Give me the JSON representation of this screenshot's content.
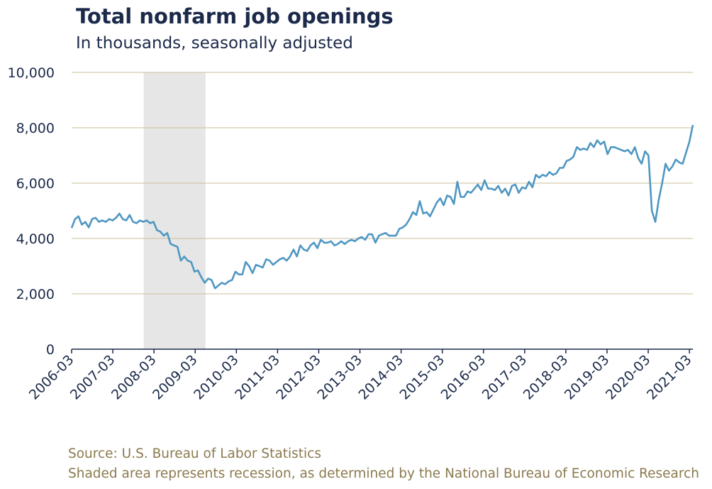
{
  "chart_data": {
    "type": "line",
    "title": "Total nonfarm job openings",
    "subtitle": "In thousands, seasonally adjusted",
    "xlabel": "",
    "ylabel": "",
    "ylim": [
      0,
      10000
    ],
    "yticks": [
      0,
      2000,
      4000,
      6000,
      8000,
      10000
    ],
    "ytick_labels": [
      "0",
      "2,000",
      "4,000",
      "6,000",
      "8,000",
      "10,000"
    ],
    "xtick_labels": [
      "2006-03",
      "2007-03",
      "2008-03",
      "2009-03",
      "2010-03",
      "2011-03",
      "2012-03",
      "2013-03",
      "2014-03",
      "2015-03",
      "2016-03",
      "2017-03",
      "2018-03",
      "2019-03",
      "2020-03",
      "2021-03"
    ],
    "x_start": "2006-03",
    "x_end": "2021-04",
    "grid": "horizontal",
    "recession_shading": {
      "start": "2007-12",
      "end": "2009-06"
    },
    "colors": {
      "line": "#4f97c2",
      "grid": "#c9bd9a",
      "shade": "#e6e6e6",
      "title": "#1c2a4a",
      "note": "#8b7a4e"
    },
    "series": [
      {
        "values": [
          4380,
          4700,
          4800,
          4500,
          4600,
          4400,
          4700,
          4750,
          4600,
          4650,
          4600,
          4700,
          4650,
          4750,
          4900,
          4700,
          4650,
          4850,
          4600,
          4550,
          4650,
          4600,
          4650,
          4550,
          4600,
          4300,
          4250,
          4100,
          4200,
          3800,
          3750,
          3700,
          3200,
          3350,
          3200,
          3150,
          2800,
          2850,
          2600,
          2400,
          2550,
          2500,
          2200,
          2300,
          2400,
          2350,
          2450,
          2500,
          2800,
          2700,
          2700,
          3150,
          3000,
          2750,
          3050,
          3000,
          2950,
          3250,
          3200,
          3050,
          3150,
          3250,
          3300,
          3200,
          3350,
          3600,
          3350,
          3750,
          3600,
          3550,
          3750,
          3850,
          3650,
          3950,
          3850,
          3850,
          3900,
          3750,
          3800,
          3900,
          3800,
          3900,
          3950,
          3900,
          4000,
          4050,
          3950,
          4150,
          4150,
          3850,
          4100,
          4150,
          4200,
          4100,
          4100,
          4100,
          4350,
          4400,
          4500,
          4700,
          4950,
          4850,
          5350,
          4900,
          4950,
          4800,
          5050,
          5300,
          5450,
          5200,
          5550,
          5500,
          5250,
          6050,
          5500,
          5500,
          5700,
          5650,
          5800,
          5950,
          5750,
          6100,
          5800,
          5800,
          5750,
          5900,
          5650,
          5800,
          5550,
          5900,
          5950,
          5650,
          5850,
          5800,
          6050,
          5850,
          6300,
          6200,
          6300,
          6250,
          6400,
          6300,
          6350,
          6550,
          6550,
          6800,
          6850,
          6950,
          7300,
          7200,
          7250,
          7200,
          7450,
          7300,
          7550,
          7400,
          7500,
          7050,
          7300,
          7300,
          7250,
          7200,
          7150,
          7200,
          7050,
          7300,
          6900,
          6700,
          7150,
          7000,
          5000,
          4600,
          5400,
          6000,
          6700,
          6450,
          6600,
          6850,
          6750,
          6700,
          7100,
          7500,
          8100
        ]
      }
    ]
  },
  "notes": {
    "source": "Source: U.S. Bureau of Labor Statistics",
    "recession": "Shaded area represents recession, as determined by the National Bureau of Economic Research"
  }
}
